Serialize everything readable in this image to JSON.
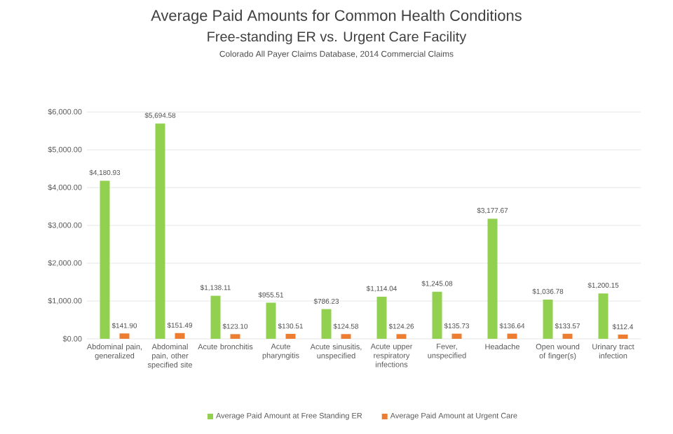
{
  "chart_data": {
    "type": "bar",
    "title": "Average Paid Amounts for Common Health Conditions",
    "subtitle": "Free-standing ER vs. Urgent Care Facility",
    "annotations": [
      "Colorado All Payer Claims Database, 2014 Commercial Claims"
    ],
    "categories": [
      "Abdominal pain, generalized",
      "Abdominal pain, other specified site",
      "Acute bronchitis",
      "Acute pharyngitis",
      "Acute sinusitis, unspecified",
      "Acute upper respiratory infections",
      "Fever, unspecified",
      "Headache",
      "Open wound of finger(s)",
      "Urinary tract infection"
    ],
    "series": [
      {
        "name": "Average Paid Amount at Free Standing ER",
        "color": "#92d050",
        "values": [
          4180.93,
          5694.58,
          1138.11,
          955.51,
          786.23,
          1114.04,
          1245.08,
          3177.67,
          1036.78,
          1200.15
        ],
        "value_labels": [
          "$4,180.93",
          "$5,694.58",
          "$1,138.11",
          "$955.51",
          "$786.23",
          "$1,114.04",
          "$1,245.08",
          "$3,177.67",
          "$1,036.78",
          "$1,200.15"
        ]
      },
      {
        "name": "Average Paid Amount at Urgent Care",
        "color": "#ed7d31",
        "values": [
          141.9,
          151.49,
          123.1,
          130.51,
          124.58,
          124.26,
          135.73,
          136.64,
          133.57,
          112.4
        ],
        "value_labels": [
          "$141.90",
          "$151.49",
          "$123.10",
          "$130.51",
          "$124.58",
          "$124.26",
          "$135.73",
          "$136.64",
          "$133.57",
          "$112.4"
        ]
      }
    ],
    "ylim": [
      0,
      6000
    ],
    "yticks": [
      {
        "value": 0,
        "label": "$0.00"
      },
      {
        "value": 1000,
        "label": "$1,000.00"
      },
      {
        "value": 2000,
        "label": "$2,000.00"
      },
      {
        "value": 3000,
        "label": "$3,000.00"
      },
      {
        "value": 4000,
        "label": "$4,000.00"
      },
      {
        "value": 5000,
        "label": "$5,000.00"
      },
      {
        "value": 6000,
        "label": "$6,000.00"
      }
    ],
    "grid": "y",
    "legend": "bottom"
  }
}
